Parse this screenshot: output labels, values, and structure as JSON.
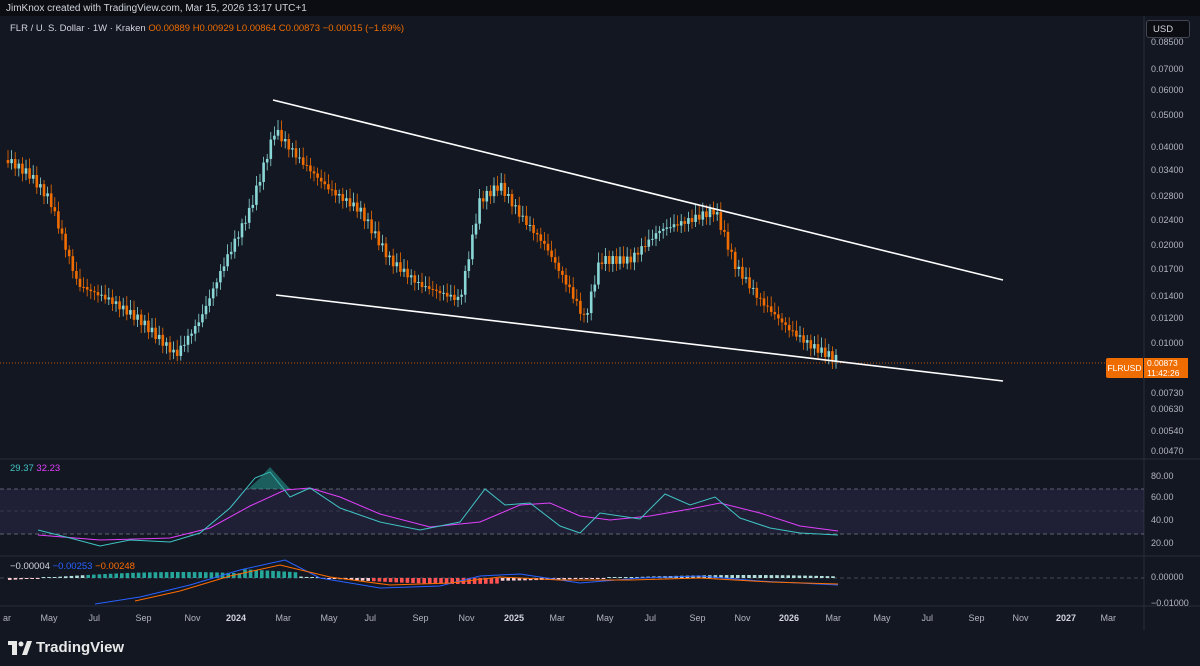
{
  "header": {
    "attribution": "JimKnox created with TradingView.com, Mar 15, 2026 13:17 UTC+1"
  },
  "legend": {
    "symbol": "FLR / U. S. Dollar · 1W · Kraken",
    "o": "O0.00889",
    "h": "H0.00929",
    "l": "L0.00864",
    "c": "C0.00873",
    "chg": "−0.00015 (−1.69%)"
  },
  "currency_button": "USD",
  "price_tag": {
    "symbol": "FLRUSD",
    "value": "0.00873",
    "countdown": "11:42:26"
  },
  "price_axis": [
    "0.08500",
    "0.07000",
    "0.06000",
    "0.05000",
    "0.04000",
    "0.03400",
    "0.02800",
    "0.02400",
    "0.02000",
    "0.01700",
    "0.01400",
    "0.01200",
    "0.01000",
    "0.00730",
    "0.00630",
    "0.00540",
    "0.00470"
  ],
  "rsi": {
    "value": "29.37",
    "ma": "32.23",
    "axis": [
      "80.00",
      "60.00",
      "40.00",
      "20.00"
    ]
  },
  "macd": {
    "hist": "−0.00004",
    "macd": "−0.00253",
    "signal": "−0.00248",
    "axis": [
      "0.00000",
      "−0.01000"
    ]
  },
  "time_axis": [
    "ar",
    "May",
    "Jul",
    "Sep",
    "Nov",
    "2024",
    "Mar",
    "May",
    "Jul",
    "Sep",
    "Nov",
    "2025",
    "Mar",
    "May",
    "Jul",
    "Sep",
    "Nov",
    "2026",
    "Mar",
    "May",
    "Jul",
    "Sep",
    "Nov",
    "2027",
    "Mar"
  ],
  "footer": {
    "brand": "TradingView"
  },
  "colors": {
    "up": "#26a69a",
    "down": "#ef6c00",
    "up_candle": "#8ad7d7",
    "rsi": "#40c4c4",
    "rsi_ma": "#e040fb",
    "macd": "#2962ff",
    "signal": "#ff6d00"
  }
}
